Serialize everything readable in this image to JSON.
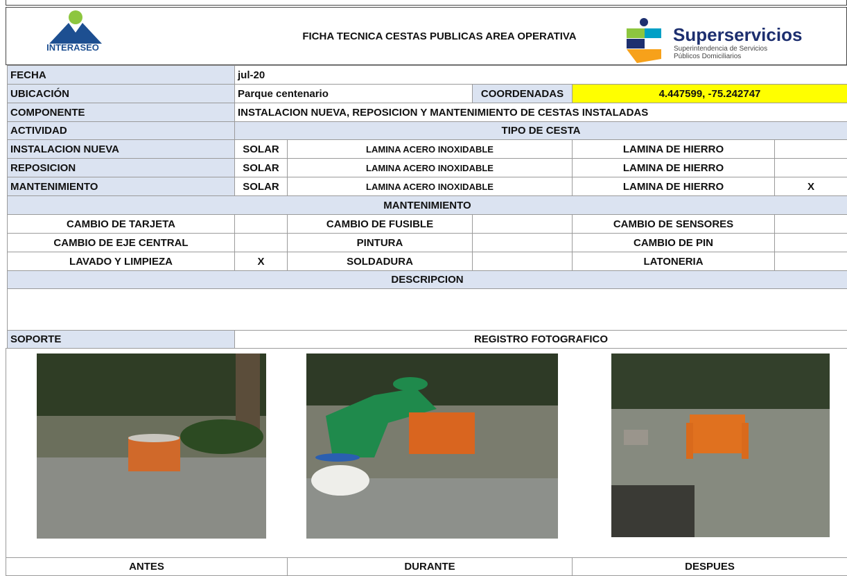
{
  "header": {
    "title": "FICHA TECNICA CESTAS PUBLICAS AREA OPERATIVA",
    "left_logo": "INTERASEO",
    "right_logo": {
      "name": "Superservicios",
      "line1": "Superintendencia de Servicios",
      "line2": "Públicos Domiciliarios"
    }
  },
  "fields": {
    "fecha": {
      "label": "FECHA",
      "value": "jul-20"
    },
    "ubicacion": {
      "label": "UBICACIÓN",
      "value": "Parque centenario"
    },
    "coordenadas": {
      "label": "COORDENADAS",
      "value": "4.447599, -75.242747"
    },
    "componente": {
      "label": "COMPONENTE",
      "value": "INSTALACION NUEVA, REPOSICION Y MANTENIMIENTO DE CESTAS INSTALADAS"
    }
  },
  "actividad": {
    "label": "ACTIVIDAD",
    "tipo_header": "TIPO DE CESTA",
    "rows": [
      {
        "name": "INSTALACION NUEVA",
        "solar": "SOLAR",
        "acero": "LAMINA ACERO INOXIDABLE",
        "hierro": "LAMINA DE HIERRO"
      },
      {
        "name": "REPOSICION",
        "solar": "SOLAR",
        "acero": "LAMINA ACERO INOXIDABLE",
        "hierro": "LAMINA DE HIERRO"
      },
      {
        "name": "MANTENIMIENTO",
        "solar": "SOLAR",
        "acero": "LAMINA ACERO INOXIDABLE",
        "hierro": "LAMINA DE HIERRO",
        "mark": "X"
      }
    ]
  },
  "mantenimiento": {
    "title": "MANTENIMIENTO",
    "rows": [
      [
        {
          "label": "CAMBIO DE TARJETA"
        },
        {
          "label": "CAMBIO DE FUSIBLE"
        },
        {
          "label": "CAMBIO DE SENSORES"
        }
      ],
      [
        {
          "label": "CAMBIO DE EJE CENTRAL"
        },
        {
          "label": "PINTURA"
        },
        {
          "label": "CAMBIO DE PIN"
        }
      ],
      [
        {
          "label": "LAVADO Y LIMPIEZA",
          "mark": "X"
        },
        {
          "label": "SOLDADURA"
        },
        {
          "label": "LATONERIA"
        }
      ]
    ]
  },
  "descripcion": {
    "title": "DESCRIPCION"
  },
  "soporte": {
    "label": "SOPORTE",
    "title": "REGISTRO FOTOGRAFICO"
  },
  "captions": [
    "ANTES",
    "DURANTE",
    "DESPUES"
  ]
}
